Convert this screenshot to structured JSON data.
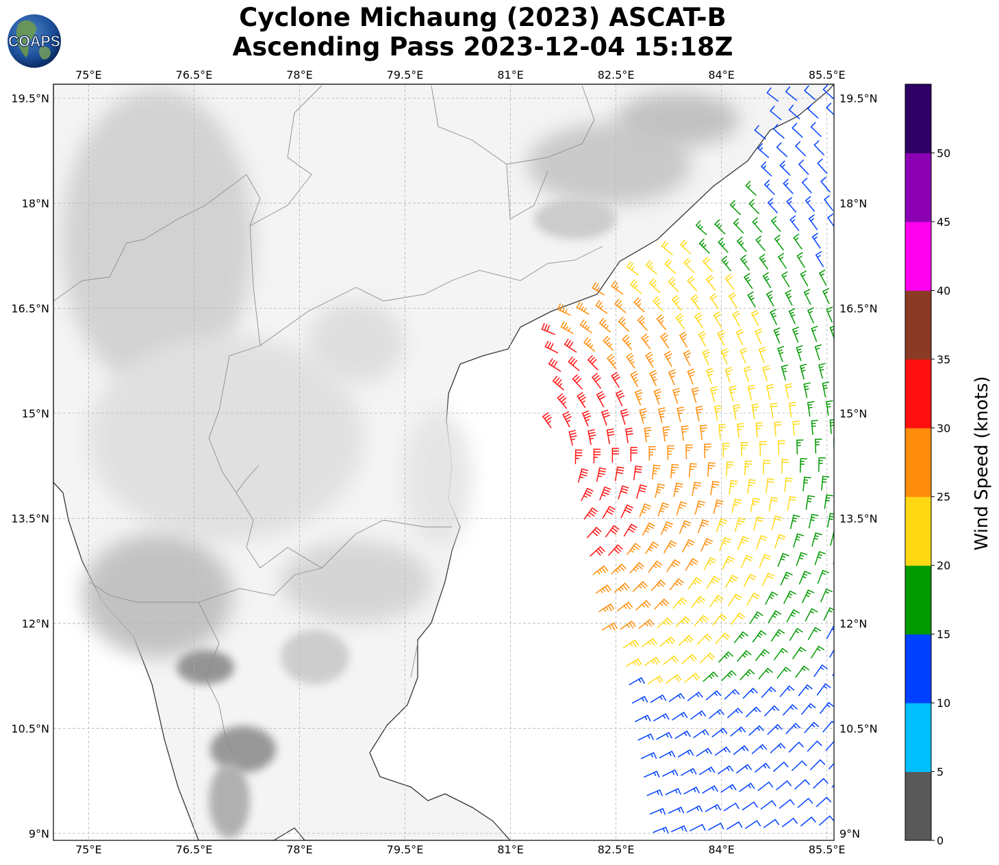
{
  "title": {
    "line1": "Cyclone Michaung (2023) ASCAT-B",
    "line2": "Ascending Pass 2023-12-04 15:18Z"
  },
  "logo": {
    "text": "COAPS",
    "icon": "globe-logo-icon"
  },
  "map": {
    "lon_range": [
      74.5,
      85.6
    ],
    "lat_range": [
      8.9,
      19.7
    ],
    "lon_ticks": [
      {
        "value": 75.0,
        "label": "75°E"
      },
      {
        "value": 76.5,
        "label": "76.5°E"
      },
      {
        "value": 78.0,
        "label": "78°E"
      },
      {
        "value": 79.5,
        "label": "79.5°E"
      },
      {
        "value": 81.0,
        "label": "81°E"
      },
      {
        "value": 82.5,
        "label": "82.5°E"
      },
      {
        "value": 84.0,
        "label": "84°E"
      },
      {
        "value": 85.5,
        "label": "85.5°E"
      }
    ],
    "lat_ticks": [
      {
        "value": 19.5,
        "label": "19.5°N"
      },
      {
        "value": 18.0,
        "label": "18°N"
      },
      {
        "value": 16.5,
        "label": "16.5°N"
      },
      {
        "value": 15.0,
        "label": "15°N"
      },
      {
        "value": 13.5,
        "label": "13.5°N"
      },
      {
        "value": 12.0,
        "label": "12°N"
      },
      {
        "value": 10.5,
        "label": "10.5°N"
      },
      {
        "value": 9.0,
        "label": "9°N"
      }
    ],
    "gridlines": true,
    "land_shading": "grayscale-topography",
    "wind_center_approx": [
      80.9,
      14.3
    ]
  },
  "colorbar": {
    "label": "Wind Speed (knots)",
    "bins": [
      {
        "min": 0,
        "max": 5,
        "color": "#595959"
      },
      {
        "min": 5,
        "max": 10,
        "color": "#00bfff"
      },
      {
        "min": 10,
        "max": 15,
        "color": "#0040ff"
      },
      {
        "min": 15,
        "max": 20,
        "color": "#009900"
      },
      {
        "min": 20,
        "max": 25,
        "color": "#ffd814"
      },
      {
        "min": 25,
        "max": 30,
        "color": "#ff8c0a"
      },
      {
        "min": 30,
        "max": 35,
        "color": "#ff1010"
      },
      {
        "min": 35,
        "max": 40,
        "color": "#8b3a26"
      },
      {
        "min": 40,
        "max": 45,
        "color": "#ff00ee"
      },
      {
        "min": 45,
        "max": 50,
        "color": "#8c00b4"
      },
      {
        "min": 50,
        "max": 55,
        "color": "#2e0066"
      }
    ],
    "tick_labels": [
      "0",
      "5",
      "10",
      "15",
      "20",
      "25",
      "30",
      "35",
      "40",
      "45",
      "50"
    ]
  }
}
